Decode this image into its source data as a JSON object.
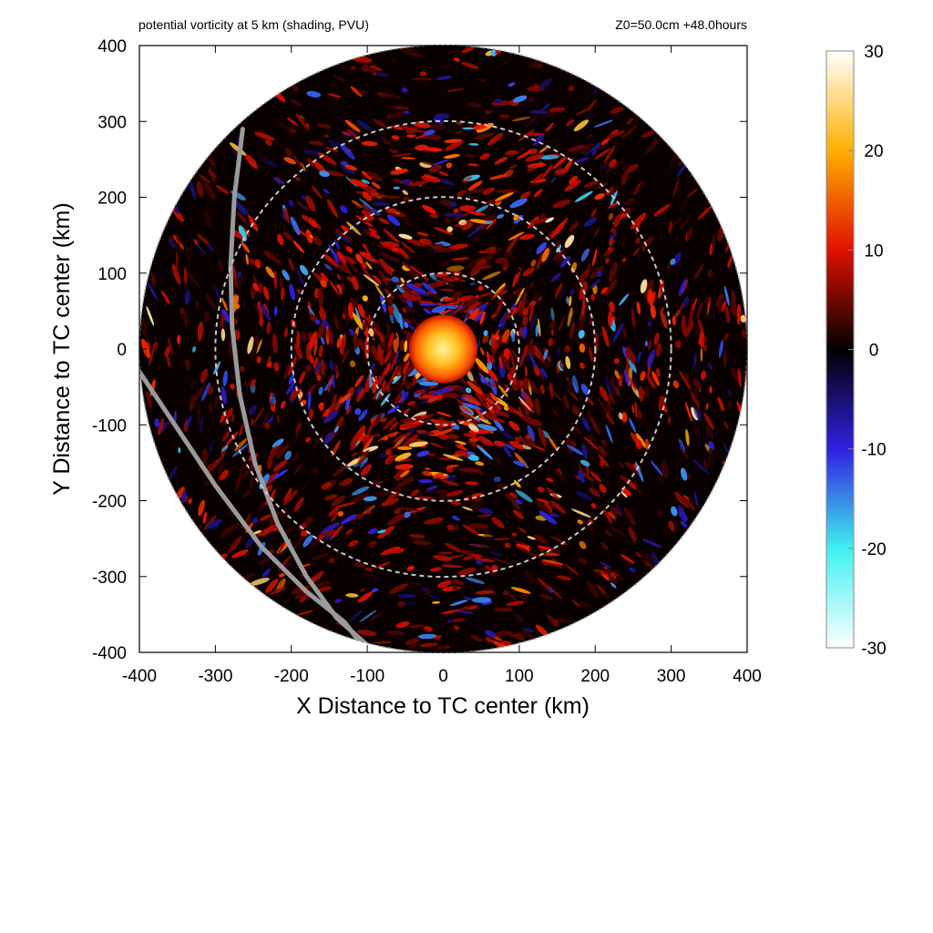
{
  "chart_data": {
    "type": "heatmap",
    "title_left": "potential vorticity at 5 km (shading, PVU)",
    "title_right": "Z0=50.0cm  +48.0hours",
    "xlabel": "X Distance to TC center (km)",
    "ylabel": "Y Distance to TC center (km)",
    "xlim": [
      -400,
      400
    ],
    "ylim": [
      -400,
      400
    ],
    "xticks": [
      "-400",
      "-300",
      "-200",
      "-100",
      "0",
      "100",
      "200",
      "300",
      "400"
    ],
    "yticks": [
      "400",
      "300",
      "200",
      "100",
      "0",
      "-100",
      "-200",
      "-300",
      "-400"
    ],
    "domain_radius_km": 400,
    "range_rings_km": [
      100,
      200,
      300
    ],
    "core": {
      "center_km": [
        0,
        0
      ],
      "radius_km": 45,
      "value_pvu": 28
    },
    "colorbar": {
      "range": [
        -30,
        30
      ],
      "ticks": [
        "30",
        "20",
        "10",
        "0",
        "-10",
        "-20",
        "-30"
      ],
      "stops": [
        {
          "value": -30,
          "color": "#ffffff"
        },
        {
          "value": -20,
          "color": "#40f0f0"
        },
        {
          "value": -10,
          "color": "#3020e0"
        },
        {
          "value": 0,
          "color": "#000000"
        },
        {
          "value": 10,
          "color": "#e01000"
        },
        {
          "value": 20,
          "color": "#ffb000"
        },
        {
          "value": 30,
          "color": "#ffffff"
        }
      ]
    },
    "coastlines": [
      {
        "name": "",
        "points_km": [
          [
            -264,
            290
          ],
          [
            -275,
            200
          ],
          [
            -280,
            110
          ],
          [
            -278,
            30
          ],
          [
            -268,
            -60
          ],
          [
            -248,
            -150
          ],
          [
            -218,
            -230
          ],
          [
            -180,
            -300
          ],
          [
            -140,
            -355
          ],
          [
            -95,
            -395
          ]
        ]
      },
      {
        "name": "",
        "points_km": [
          [
            -400,
            -30
          ],
          [
            -360,
            -90
          ],
          [
            -300,
            -180
          ],
          [
            -240,
            -260
          ],
          [
            -180,
            -320
          ],
          [
            -130,
            -360
          ],
          [
            -100,
            -400
          ]
        ]
      }
    ]
  }
}
